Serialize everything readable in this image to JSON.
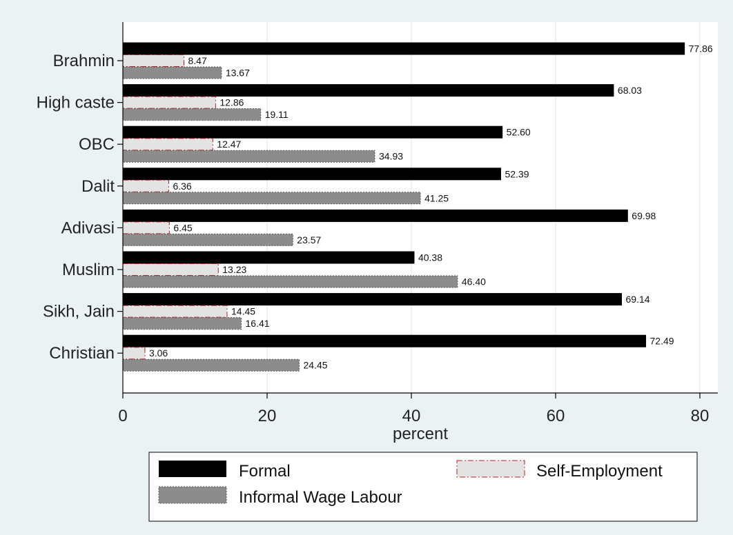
{
  "chart_data": {
    "type": "bar",
    "orientation": "horizontal",
    "categories": [
      "Brahmin",
      "High caste",
      "OBC",
      "Dalit",
      "Adivasi",
      "Muslim",
      "Sikh, Jain",
      "Christian"
    ],
    "series": [
      {
        "name": "Formal",
        "color": "#000000",
        "values": [
          77.86,
          68.03,
          52.6,
          52.39,
          69.98,
          40.38,
          69.14,
          72.49
        ],
        "labels": [
          "77.86",
          "68.03",
          "52.60",
          "52.39",
          "69.98",
          "40.38",
          "69.14",
          "72.49"
        ]
      },
      {
        "name": "Self-Employment",
        "color": "#e3e3e3",
        "outline": "#b22222",
        "values": [
          8.47,
          12.86,
          12.47,
          6.36,
          6.45,
          13.23,
          14.45,
          3.06
        ],
        "labels": [
          "8.47",
          "12.86",
          "12.47",
          "6.36",
          "6.45",
          "13.23",
          "14.45",
          "3.06"
        ]
      },
      {
        "name": "Informal Wage Labour",
        "color": "#8c8c8c",
        "outline": "#555555",
        "values": [
          13.67,
          19.11,
          34.93,
          41.25,
          23.57,
          46.4,
          16.41,
          24.45
        ],
        "labels": [
          "13.67",
          "19.11",
          "34.93",
          "41.25",
          "23.57",
          "46.40",
          "16.41",
          "24.45"
        ]
      }
    ],
    "xlabel": "percent",
    "ylabel": "",
    "xlim": [
      0,
      82
    ],
    "xticks": [
      "0",
      "20",
      "40",
      "60",
      "80"
    ],
    "grid": true,
    "legend_position": "bottom",
    "background": "#eaf2f3",
    "plot_background": "#ffffff"
  }
}
